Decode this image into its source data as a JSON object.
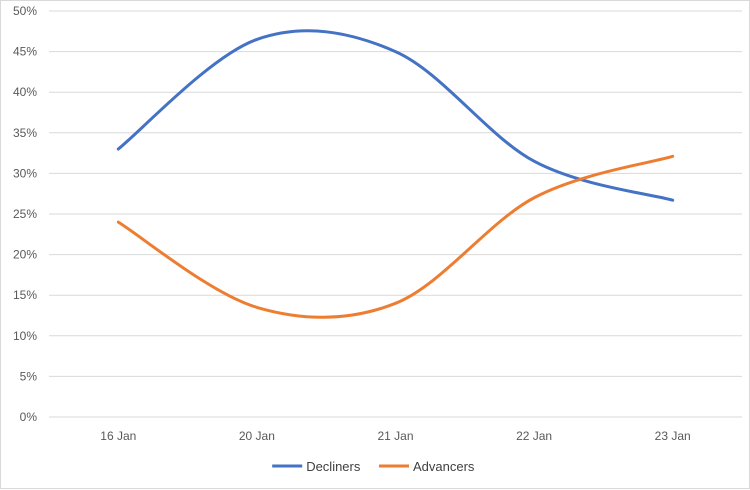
{
  "chart_data": {
    "type": "line",
    "categories": [
      "16 Jan",
      "20 Jan",
      "21 Jan",
      "22 Jan",
      "23 Jan"
    ],
    "series": [
      {
        "name": "Decliners",
        "values": [
          33.0,
          46.5,
          45.0,
          31.5,
          26.7
        ],
        "color": "#4472c4"
      },
      {
        "name": "Advancers",
        "values": [
          24.0,
          13.5,
          14.0,
          27.0,
          32.1
        ],
        "color": "#ed7d31"
      }
    ],
    "yticks": [
      "0%",
      "5%",
      "10%",
      "15%",
      "20%",
      "25%",
      "30%",
      "35%",
      "40%",
      "45%",
      "50%"
    ],
    "ylim": [
      0,
      50
    ],
    "grid": true,
    "legend": "bottom",
    "smooth": true
  }
}
